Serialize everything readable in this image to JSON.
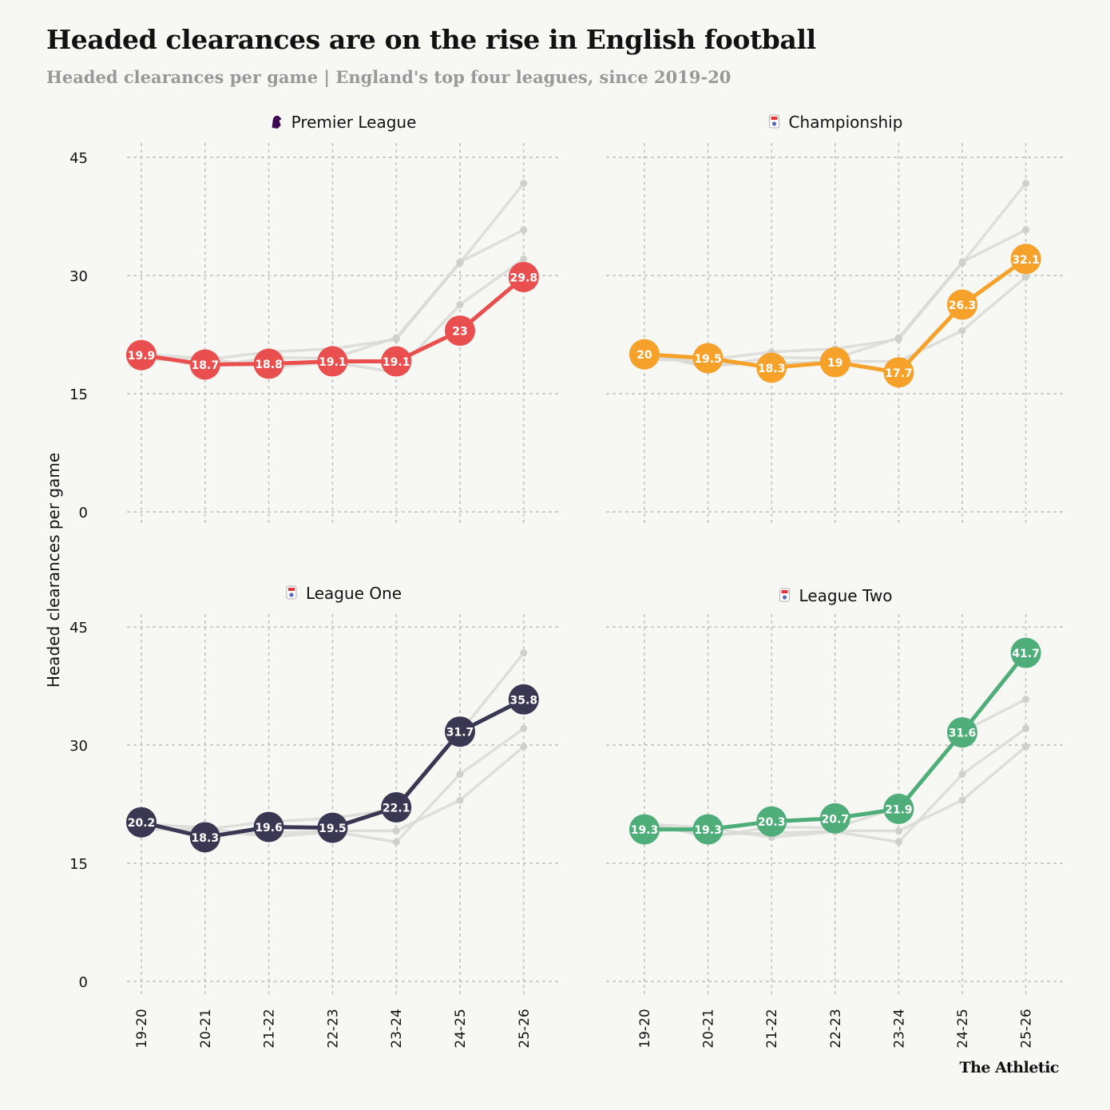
{
  "title": "Headed clearances are on the rise in English football",
  "subtitle": "Headed clearances per game | England's top four leagues, since 2019-20",
  "brand": "The Athletic",
  "colors": {
    "background": "#f7f7f3",
    "grid": "#c8c8c8",
    "ghost": "#d9d9d6",
    "premier": "#ea4f4f",
    "championship": "#f5a12a",
    "league_one": "#3a3753",
    "league_two": "#4fad79"
  },
  "chart_data": {
    "type": "line",
    "layout": "small-multiples",
    "ylabel": "Headed clearances per game",
    "ylim": [
      0,
      45
    ],
    "yticks": [
      0,
      15,
      30,
      45
    ],
    "x": [
      "19-20",
      "20-21",
      "21-22",
      "22-23",
      "23-24",
      "24-25",
      "25-26"
    ],
    "series": [
      {
        "name": "Premier League",
        "icon": "premier-league-lion-icon",
        "color": "#ea4f4f",
        "values": [
          19.9,
          18.7,
          18.8,
          19.1,
          19.1,
          23,
          29.8
        ]
      },
      {
        "name": "Championship",
        "icon": "championship-badge-icon",
        "color": "#f5a12a",
        "values": [
          20,
          19.5,
          18.3,
          19,
          17.7,
          26.3,
          32.1
        ]
      },
      {
        "name": "League One",
        "icon": "league-one-badge-icon",
        "color": "#3a3753",
        "values": [
          20.2,
          18.3,
          19.6,
          19.5,
          22.1,
          31.7,
          35.8
        ]
      },
      {
        "name": "League Two",
        "icon": "league-two-badge-icon",
        "color": "#4fad79",
        "values": [
          19.3,
          19.3,
          20.3,
          20.7,
          21.9,
          31.6,
          41.7
        ]
      }
    ]
  }
}
